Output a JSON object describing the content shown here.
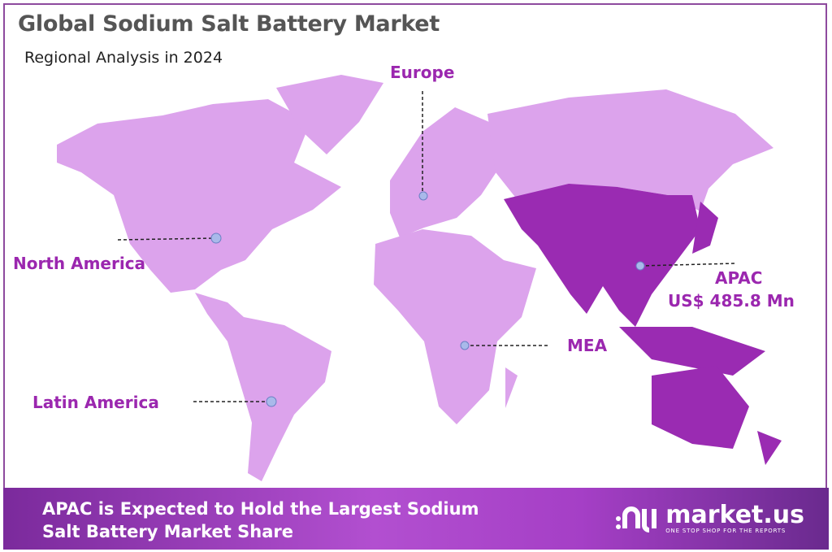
{
  "header": {
    "title": "Global Sodium Salt Battery Market",
    "subtitle": "Regional Analysis in 2024"
  },
  "regions": {
    "europe": {
      "label": "Europe"
    },
    "north_america": {
      "label": "North America"
    },
    "latin_america": {
      "label": "Latin America"
    },
    "mea": {
      "label": "MEA"
    },
    "apac": {
      "label": "APAC",
      "value": "US$ 485.8 Mn",
      "highlighted": true
    }
  },
  "colors": {
    "land": "#dca3ec",
    "apac": "#9a2bb2",
    "label": "#9b27af",
    "marker": "#a9b9ea"
  },
  "banner": {
    "line1": "APAC is Expected to Hold the Largest Sodium",
    "line2": "Salt Battery Market Share"
  },
  "logo": {
    "name": "market.us",
    "tagline": "ONE STOP SHOP FOR THE REPORTS"
  }
}
